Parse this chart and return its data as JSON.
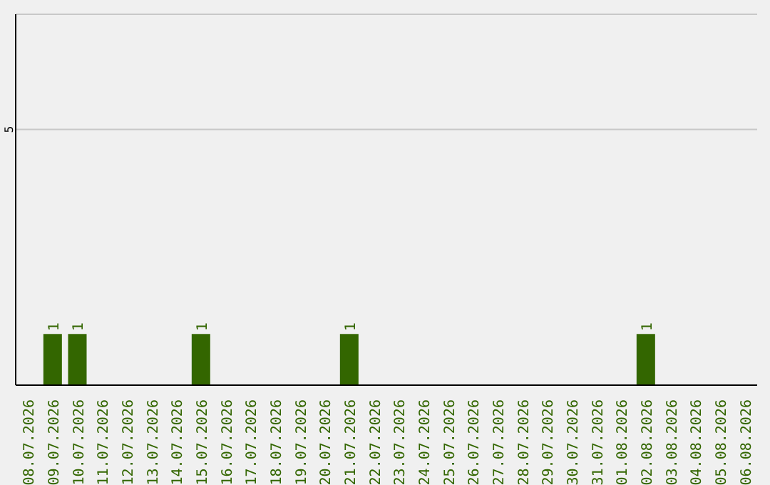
{
  "chart_data": {
    "type": "bar",
    "categories": [
      "08.07.2026",
      "09.07.2026",
      "10.07.2026",
      "11.07.2026",
      "12.07.2026",
      "13.07.2026",
      "14.07.2026",
      "15.07.2026",
      "16.07.2026",
      "17.07.2026",
      "18.07.2026",
      "19.07.2026",
      "20.07.2026",
      "21.07.2026",
      "22.07.2026",
      "23.07.2026",
      "24.07.2026",
      "25.07.2026",
      "26.07.2026",
      "27.07.2026",
      "28.07.2026",
      "29.07.2026",
      "30.07.2026",
      "31.07.2026",
      "01.08.2026",
      "02.08.2026",
      "03.08.2026",
      "04.08.2026",
      "05.08.2026",
      "06.08.2026"
    ],
    "values": [
      0,
      1,
      1,
      0,
      0,
      0,
      0,
      1,
      0,
      0,
      0,
      0,
      0,
      1,
      0,
      0,
      0,
      0,
      0,
      0,
      0,
      0,
      0,
      0,
      0,
      1,
      0,
      0,
      0,
      0
    ],
    "value_labels": [
      null,
      "1",
      "1",
      null,
      null,
      null,
      null,
      "1",
      null,
      null,
      null,
      null,
      null,
      "1",
      null,
      null,
      null,
      null,
      null,
      null,
      null,
      null,
      null,
      null,
      null,
      "1",
      null,
      null,
      null,
      null
    ],
    "color": "#336600",
    "ylim": [
      0,
      7.25
    ],
    "yticks": [
      5
    ],
    "grid": "y"
  }
}
